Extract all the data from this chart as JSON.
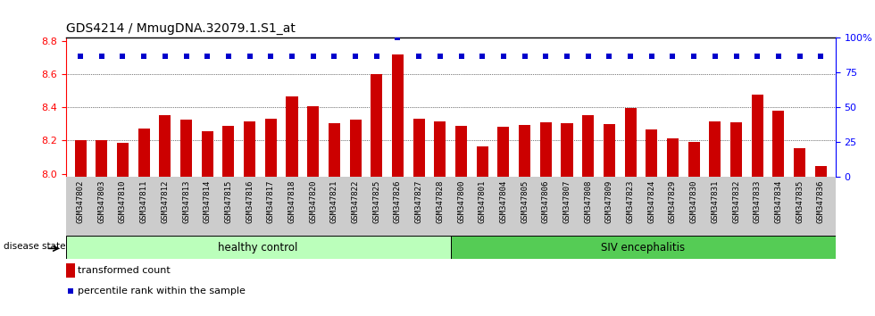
{
  "title": "GDS4214 / MmugDNA.32079.1.S1_at",
  "samples": [
    "GSM347802",
    "GSM347803",
    "GSM347810",
    "GSM347811",
    "GSM347812",
    "GSM347813",
    "GSM347814",
    "GSM347815",
    "GSM347816",
    "GSM347817",
    "GSM347818",
    "GSM347820",
    "GSM347821",
    "GSM347822",
    "GSM347825",
    "GSM347826",
    "GSM347827",
    "GSM347828",
    "GSM347800",
    "GSM347801",
    "GSM347804",
    "GSM347805",
    "GSM347806",
    "GSM347807",
    "GSM347808",
    "GSM347809",
    "GSM347823",
    "GSM347824",
    "GSM347829",
    "GSM347830",
    "GSM347831",
    "GSM347832",
    "GSM347833",
    "GSM347834",
    "GSM347835",
    "GSM347836"
  ],
  "bar_values": [
    8.205,
    8.205,
    8.185,
    8.27,
    8.355,
    8.325,
    8.255,
    8.29,
    8.315,
    8.33,
    8.465,
    8.405,
    8.305,
    8.325,
    8.6,
    8.72,
    8.33,
    8.315,
    8.29,
    8.165,
    8.285,
    8.295,
    8.31,
    8.305,
    8.355,
    8.3,
    8.395,
    8.265,
    8.215,
    8.19,
    8.315,
    8.31,
    8.475,
    8.38,
    8.155,
    8.045
  ],
  "percentile_values": [
    87,
    87,
    87,
    87,
    87,
    87,
    87,
    87,
    87,
    87,
    87,
    87,
    87,
    87,
    87,
    100,
    87,
    87,
    87,
    87,
    87,
    87,
    87,
    87,
    87,
    87,
    87,
    87,
    87,
    87,
    87,
    87,
    87,
    87,
    87,
    87
  ],
  "bar_color": "#cc0000",
  "dot_color": "#0000cc",
  "healthy_count": 18,
  "healthy_label": "healthy control",
  "siv_label": "SIV encephalitis",
  "healthy_color": "#bbffbb",
  "siv_color": "#55cc55",
  "ylim_left": [
    7.98,
    8.82
  ],
  "ylim_right": [
    0,
    100
  ],
  "yticks_left": [
    8.0,
    8.2,
    8.4,
    8.6,
    8.8
  ],
  "yticks_right": [
    0,
    25,
    50,
    75,
    100
  ],
  "grid_values": [
    8.2,
    8.4,
    8.6
  ],
  "legend_bar_label": "transformed count",
  "legend_dot_label": "percentile rank within the sample",
  "disease_state_label": "disease state",
  "bar_width": 0.55,
  "xlabel_fontsize": 6.5,
  "title_fontsize": 10
}
